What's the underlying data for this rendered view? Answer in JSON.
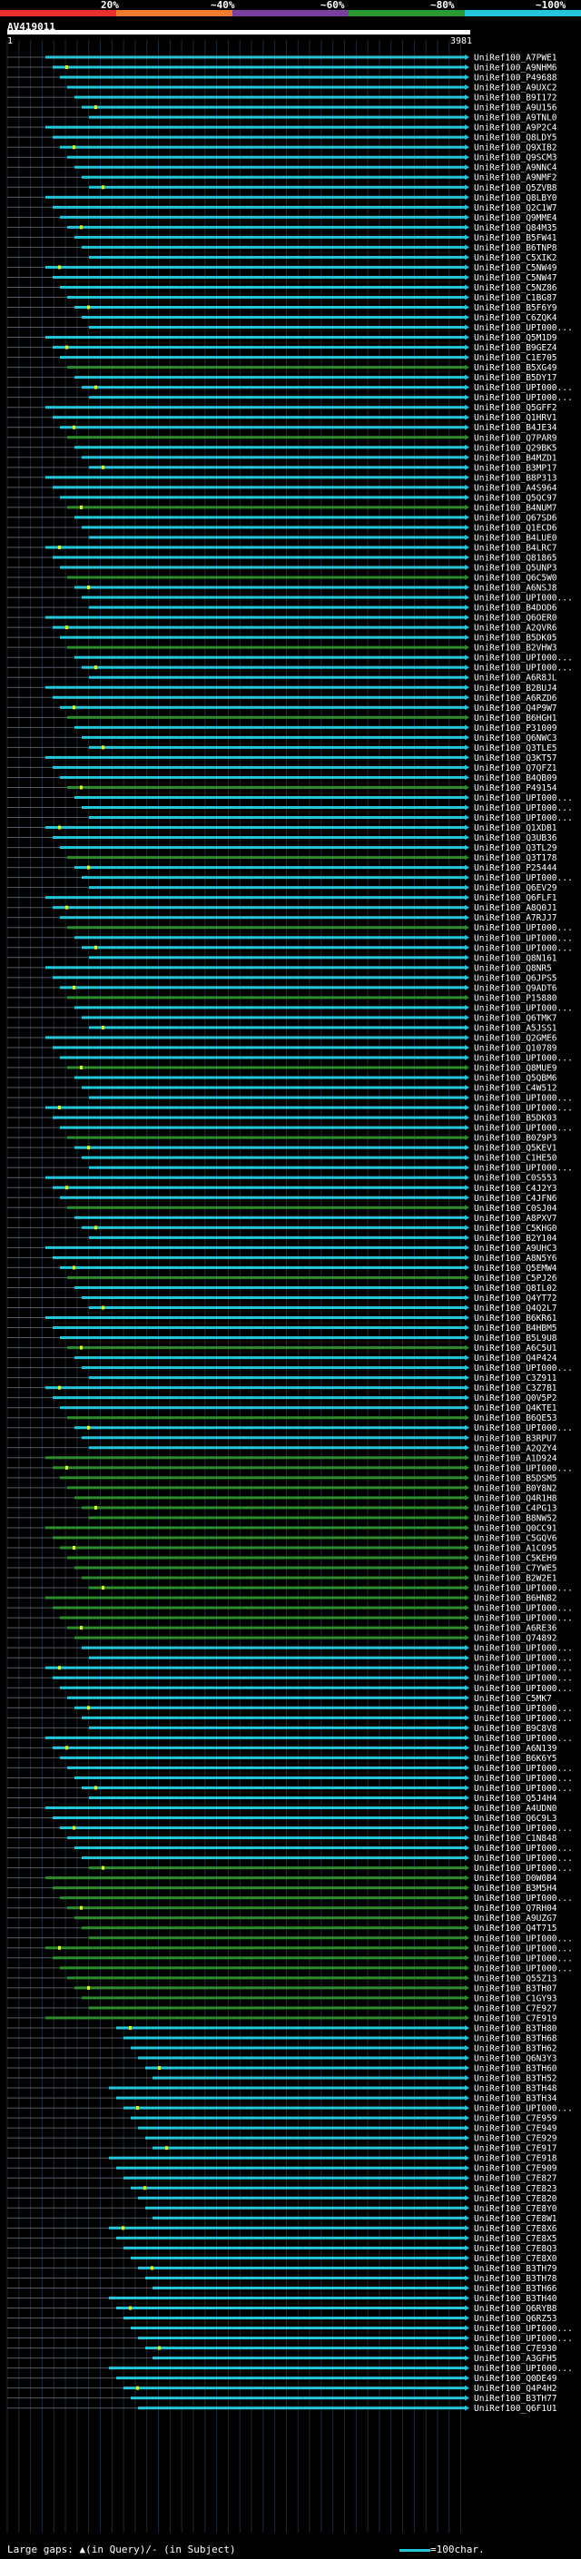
{
  "chart_data": {
    "type": "alignment",
    "title": "AV419011",
    "query_length": 3981,
    "scale_start": "1",
    "scale_end": "3981",
    "identity_scale": {
      "labels": [
        "20%",
        "~40%",
        "~60%",
        "~80%",
        "~100%"
      ],
      "colors": [
        "#e8312f",
        "#f07d2d",
        "#7b3fa0",
        "#2a9a33",
        "#26c6da"
      ]
    },
    "legend": {
      "gaps": "Large gaps: ▲(in Query)/- (in Subject)",
      "scale": "=100char."
    },
    "hits": [
      "UniRef100_A7PWE1",
      "UniRef100_A9NHM6",
      "UniRef100_P49688",
      "UniRef100_A9UXC2",
      "UniRef100_B9I172",
      "UniRef100_A9U156",
      "UniRef100_A9TNL0",
      "UniRef100_A9P2C4",
      "UniRef100_Q8LDY5",
      "UniRef100_Q9XIB2",
      "UniRef100_Q9SCM3",
      "UniRef100_A9NNC4",
      "UniRef100_A9NMF2",
      "UniRef100_Q5ZVB8",
      "UniRef100_Q8LBY0",
      "UniRef100_Q2C1W7",
      "UniRef100_Q9MME4",
      "UniRef100_Q84M35",
      "UniRef100_B5FW41",
      "UniRef100_B6TNP8",
      "UniRef100_C5XIK2",
      "UniRef100_C5NW49",
      "UniRef100_C5NW47",
      "UniRef100_C5NZ86",
      "UniRef100_C1BG87",
      "UniRef100_B5F6Y9",
      "UniRef100_C6ZQK4",
      "UniRef100_UPI000...",
      "UniRef100_Q5M1D9",
      "UniRef100_B9GEZ4",
      "UniRef100_C1E705",
      "UniRef100_B5XG49",
      "UniRef100_B5DY17",
      "UniRef100_UPI000...",
      "UniRef100_UPI000...",
      "UniRef100_Q5GFF2",
      "UniRef100_Q1HRV1",
      "UniRef100_B4JE34",
      "UniRef100_Q7PAR9",
      "UniRef100_Q29BK5",
      "UniRef100_B4MZD1",
      "UniRef100_B3MP17",
      "UniRef100_B8P313",
      "UniRef100_A4S964",
      "UniRef100_Q5QC97",
      "UniRef100_B4NUM7",
      "UniRef100_Q67SD6",
      "UniRef100_Q1ECD6",
      "UniRef100_B4LUE0",
      "UniRef100_B4LRC7",
      "UniRef100_Q81865",
      "UniRef100_Q5UNP3",
      "UniRef100_Q6C5W0",
      "UniRef100_A6NSJ8",
      "UniRef100_UPI000...",
      "UniRef100_B4DOD6",
      "UniRef100_Q6OER0",
      "UniRef100_A2QVR6",
      "UniRef100_B5DK05",
      "UniRef100_B2VHW3",
      "UniRef100_UPI000...",
      "UniRef100_UPI000...",
      "UniRef100_A6R8JL",
      "UniRef100_B2BUJ4",
      "UniRef100_A6RZD6",
      "UniRef100_Q4P9W7",
      "UniRef100_B6HGH1",
      "UniRef100_P31009",
      "UniRef100_Q6NWC3",
      "UniRef100_Q3TLE5",
      "UniRef100_Q3KT57",
      "UniRef100_Q7QFZ1",
      "UniRef100_B4QB09",
      "UniRef100_P49154",
      "UniRef100_UPI000...",
      "UniRef100_UPI000...",
      "UniRef100_UPI000...",
      "UniRef100_Q1XDB1",
      "UniRef100_Q3UB36",
      "UniRef100_Q3TL29",
      "UniRef100_Q3T178",
      "UniRef100_P25444",
      "UniRef100_UPI000...",
      "UniRef100_Q6EV29",
      "UniRef100_Q6FLF1",
      "UniRef100_A8Q0J1",
      "UniRef100_A7RJJ7",
      "UniRef100_UPI000...",
      "UniRef100_UPI000...",
      "UniRef100_UPI000...",
      "UniRef100_Q8N161",
      "UniRef100_Q8NR5",
      "UniRef100_Q6JPS5",
      "UniRef100_Q9ADT6",
      "UniRef100_P15880",
      "UniRef100_UPI000...",
      "UniRef100_Q6TMK7",
      "UniRef100_A5JSS1",
      "UniRef100_Q2GME6",
      "UniRef100_Q10789",
      "UniRef100_UPI000...",
      "UniRef100_Q8MUE9",
      "UniRef100_Q5QBM6",
      "UniRef100_C4W512",
      "UniRef100_UPI000...",
      "UniRef100_UPI000...",
      "UniRef100_B5DK03",
      "UniRef100_UPI000...",
      "UniRef100_B0Z9P3",
      "UniRef100_Q5KEV1",
      "UniRef100_C1HE50",
      "UniRef100_UPI000...",
      "UniRef100_C0S553",
      "UniRef100_C4J2Y3",
      "UniRef100_C4JFN6",
      "UniRef100_C0SJ04",
      "UniRef100_A8PXV7",
      "UniRef100_C5KHG0",
      "UniRef100_B2Y104",
      "UniRef100_A9UHC3",
      "UniRef100_A8N5Y6",
      "UniRef100_Q5EMW4",
      "UniRef100_C5PJ26",
      "UniRef100_Q8IL02",
      "UniRef100_Q4YT72",
      "UniRef100_Q4Q2L7",
      "UniRef100_B6KR61",
      "UniRef100_B4HBM5",
      "UniRef100_B5L9U8",
      "UniRef100_A6C5U1",
      "UniRef100_Q4P424",
      "UniRef100_UPI000...",
      "UniRef100_C3Z911",
      "UniRef100_C3Z7B1",
      "UniRef100_Q0V5P2",
      "UniRef100_Q4KTE1",
      "UniRef100_B6QE53",
      "UniRef100_UPI000...",
      "UniRef100_B3RPU7",
      "UniRef100_A2QZY4",
      "UniRef100_A1D924",
      "UniRef100_UPI000...",
      "UniRef100_B5DSM5",
      "UniRef100_B0Y8N2",
      "UniRef100_Q4R1H8",
      "UniRef100_C4PG13",
      "UniRef100_B8NW52",
      "UniRef100_Q0CC91",
      "UniRef100_C5GQV6",
      "UniRef100_A1C095",
      "UniRef100_C5KEH9",
      "UniRef100_C7YWE5",
      "UniRef100_B2W2E1",
      "UniRef100_UPI000...",
      "UniRef100_B6HNB2",
      "UniRef100_UPI000...",
      "UniRef100_UPI000...",
      "UniRef100_A6RE36",
      "UniRef100_Q74892",
      "UniRef100_UPI000...",
      "UniRef100_UPI000...",
      "UniRef100_UPI000...",
      "UniRef100_UPI000...",
      "UniRef100_UPI000...",
      "UniRef100_C5MK7",
      "UniRef100_UPI000...",
      "UniRef100_UPI000...",
      "UniRef100_B9C8V8",
      "UniRef100_UPI000...",
      "UniRef100_A6N139",
      "UniRef100_B6K6Y5",
      "UniRef100_UPI000...",
      "UniRef100_UPI000...",
      "UniRef100_UPI000...",
      "UniRef100_Q5J4H4",
      "UniRef100_A4UDN0",
      "UniRef100_Q6C9L3",
      "UniRef100_UPI000...",
      "UniRef100_C1N848",
      "UniRef100_UPI000...",
      "UniRef100_UPI000...",
      "UniRef100_UPI000...",
      "UniRef100_D0W0B4",
      "UniRef100_B3M5H4",
      "UniRef100_UPI000...",
      "UniRef100_Q7RH04",
      "UniRef100_A9UZG7",
      "UniRef100_Q4T715",
      "UniRef100_UPI000...",
      "UniRef100_UPI000...",
      "UniRef100_UPI000...",
      "UniRef100_UPI000...",
      "UniRef100_Q55Z13",
      "UniRef100_B3TH07",
      "UniRef100_C1GY93",
      "UniRef100_C7E927",
      "UniRef100_C7E919",
      "UniRef100_B3TH80",
      "UniRef100_B3TH68",
      "UniRef100_B3TH62",
      "UniRef100_Q6N3Y3",
      "UniRef100_B3TH60",
      "UniRef100_B3TH52",
      "UniRef100_B3TH48",
      "UniRef100_B3TH34",
      "UniRef100_UPI000...",
      "UniRef100_C7E959",
      "UniRef100_C7E949",
      "UniRef100_C7E929",
      "UniRef100_C7E917",
      "UniRef100_C7E918",
      "UniRef100_C7E909",
      "UniRef100_C7E827",
      "UniRef100_C7E823",
      "UniRef100_C7E820",
      "UniRef100_C7E8Y0",
      "UniRef100_C7E8W1",
      "UniRef100_C7E8X6",
      "UniRef100_C7E8X5",
      "UniRef100_C7E8Q3",
      "UniRef100_C7E8X0",
      "UniRef100_B3TH79",
      "UniRef100_B3TH78",
      "UniRef100_B3TH66",
      "UniRef100_B3TH40",
      "UniRef100_Q6RYB8",
      "UniRef100_Q6RZ53",
      "UniRef100_UPI000...",
      "UniRef100_UPI000...",
      "UniRef100_C7E930",
      "UniRef100_A3GFH5",
      "UniRef100_UPI000...",
      "UniRef100_Q0DE49",
      "UniRef100_Q4P4H2",
      "UniRef100_B3TH77",
      "UniRef100_Q6F1U1"
    ]
  }
}
